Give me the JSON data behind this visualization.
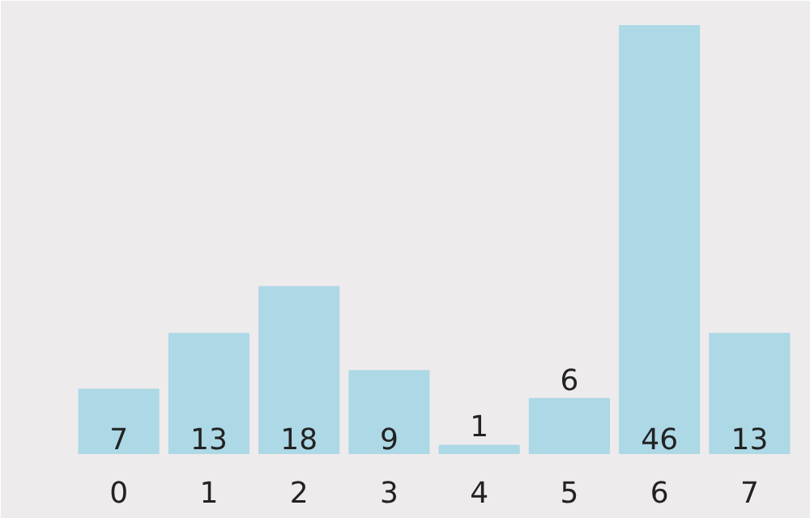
{
  "chart_data": {
    "type": "bar",
    "categories": [
      "0",
      "1",
      "2",
      "3",
      "4",
      "5",
      "6",
      "7"
    ],
    "values": [
      7,
      13,
      18,
      9,
      1,
      6,
      46,
      13
    ],
    "color": "#add8e6",
    "data_labels": true
  }
}
